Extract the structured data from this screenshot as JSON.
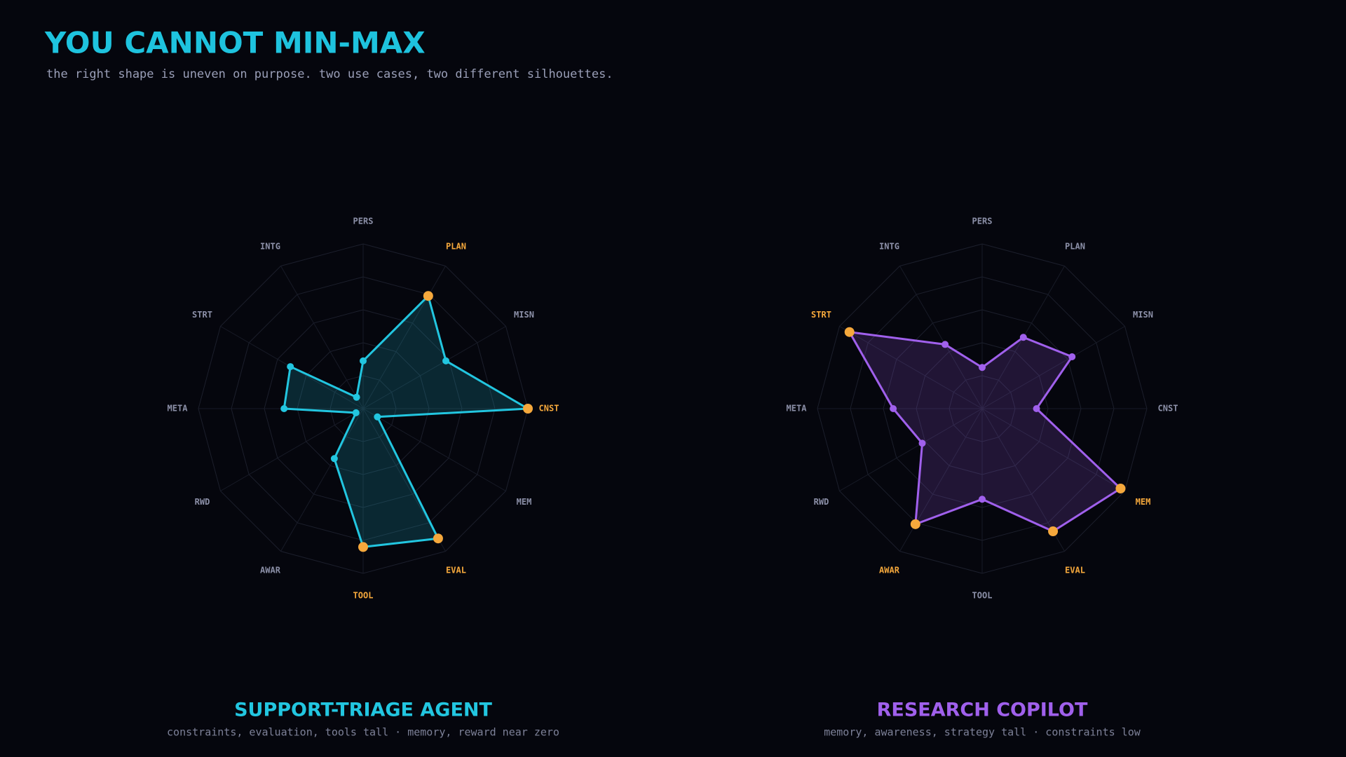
{
  "header": {
    "title": "YOU CANNOT MIN-MAX",
    "subtitle": "the right shape is uneven on purpose. two use cases, two different silhouettes."
  },
  "chart_data": [
    {
      "type": "radar",
      "title": "SUPPORT-TRIAGE AGENT",
      "subtitle": "constraints, evaluation, tools tall · memory, reward near zero",
      "categories": [
        "PERS",
        "PLAN",
        "MISN",
        "CNST",
        "MEM",
        "EVAL",
        "TOOL",
        "AWAR",
        "RWD",
        "META",
        "STRT",
        "INTG"
      ],
      "values": [
        29,
        79,
        58,
        100,
        10,
        91,
        84,
        35,
        5,
        48,
        51,
        8
      ],
      "color": "#22c6e0",
      "highlight": [
        1,
        3,
        5,
        6
      ],
      "highlight_color": "#f5a83c",
      "rlim": [
        0,
        100
      ],
      "rticks": [
        20,
        40,
        60,
        80,
        100
      ]
    },
    {
      "type": "radar",
      "title": "RESEARCH COPILOT",
      "subtitle": "memory, awareness, strategy tall · constraints low",
      "categories": [
        "PERS",
        "PLAN",
        "MISN",
        "CNST",
        "MEM",
        "EVAL",
        "TOOL",
        "AWAR",
        "RWD",
        "META",
        "STRT",
        "INTG"
      ],
      "values": [
        25,
        50,
        63,
        33,
        97,
        86,
        55,
        81,
        42,
        54,
        93,
        45
      ],
      "color": "#a060ec",
      "highlight": [
        4,
        5,
        7,
        10
      ],
      "highlight_color": "#f5a83c",
      "rlim": [
        0,
        100
      ],
      "rticks": [
        20,
        40,
        60,
        80,
        100
      ]
    }
  ]
}
